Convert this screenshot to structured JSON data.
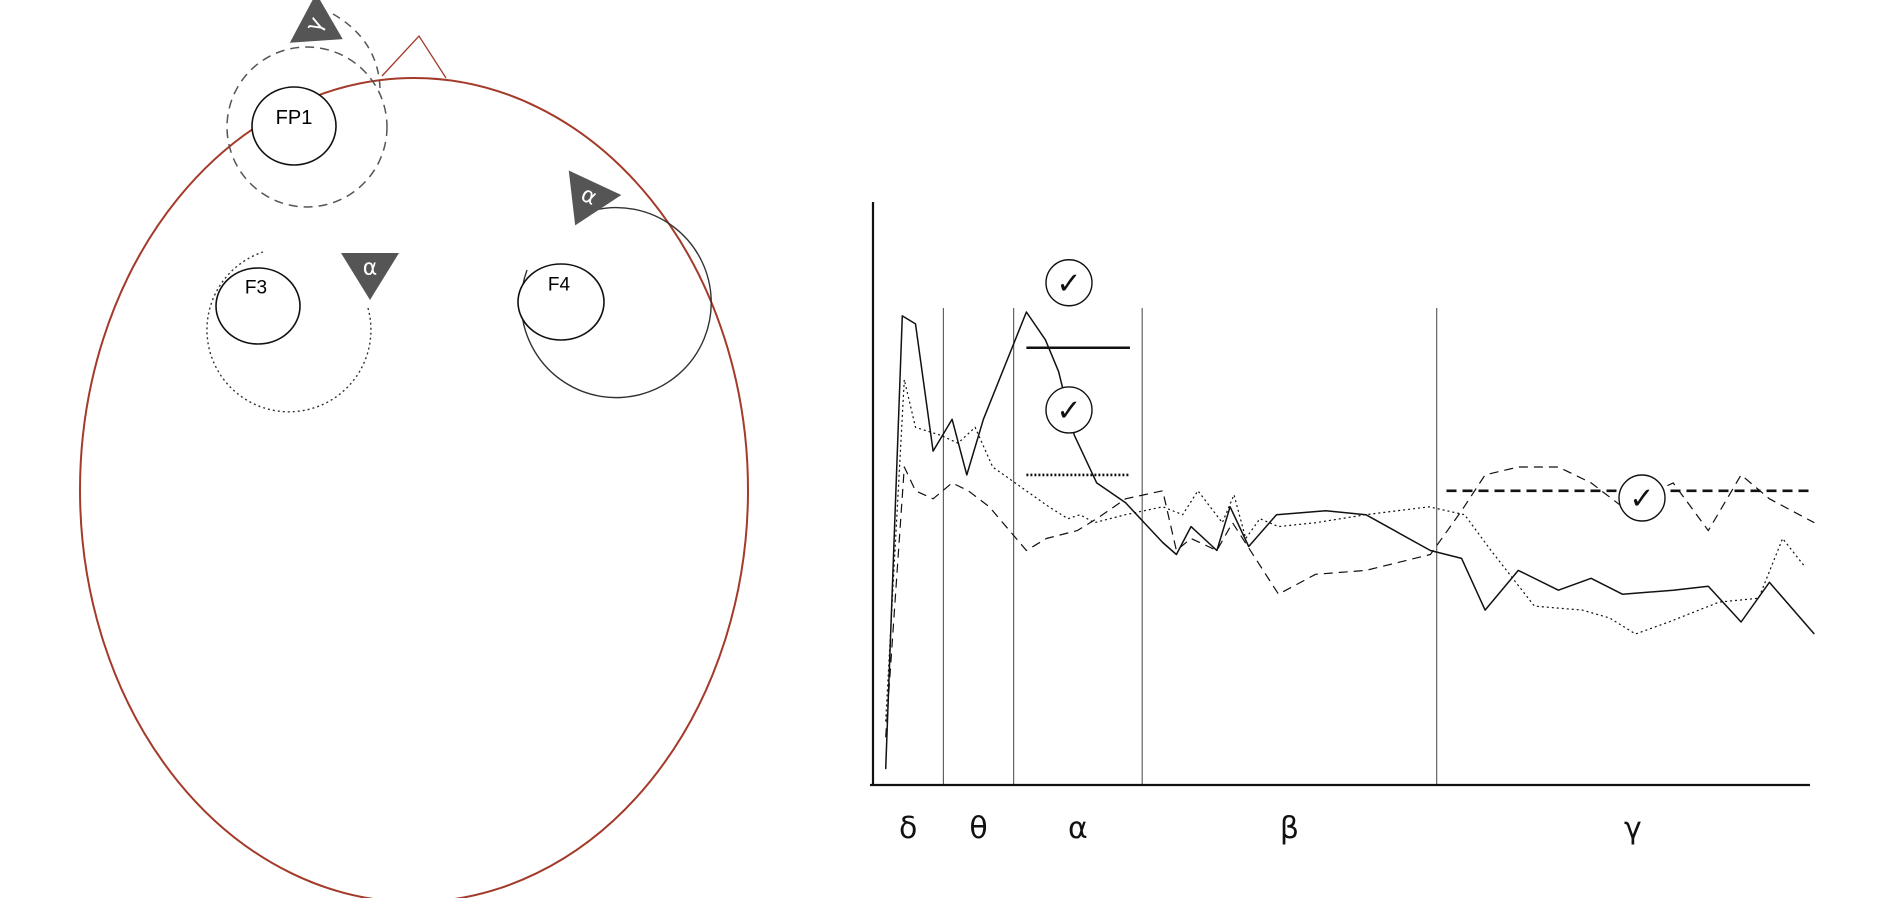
{
  "head": {
    "outline_color": "#a33a2a",
    "electrodes": [
      {
        "id": "fp1",
        "label": "FP1",
        "marker": "γ"
      },
      {
        "id": "f3",
        "label": "F3",
        "marker": "α"
      },
      {
        "id": "f4",
        "label": "F4",
        "marker": "α"
      }
    ]
  },
  "marker_color": "#555555",
  "check_glyph": "✓",
  "chart_data": {
    "type": "line",
    "title": "",
    "xlabel": "",
    "ylabel": "",
    "bands": [
      "δ",
      "θ",
      "α",
      "β",
      "γ"
    ],
    "band_edges": [
      0,
      1.44,
      2.88,
      5.51,
      11.54,
      19.57
    ],
    "xlim": [
      0,
      19.57
    ],
    "ylim": [
      0,
      10
    ],
    "series": [
      {
        "style": "solid",
        "x": [
          0.26,
          0.6,
          0.87,
          1.23,
          1.62,
          1.92,
          2.26,
          3.14,
          3.53,
          3.8,
          4.12,
          4.58,
          5.17,
          5.93,
          6.21,
          6.51,
          7.04,
          7.31,
          7.69,
          8.26,
          9.27,
          10.09,
          11.41,
          12.05,
          12.53,
          13.21,
          14.03,
          14.7,
          15.34,
          16.38,
          17.1,
          17.77,
          18.35,
          19.27
        ],
        "y": [
          0.2,
          5.9,
          5.8,
          4.2,
          4.6,
          3.9,
          4.6,
          5.95,
          5.6,
          5.2,
          4.4,
          3.8,
          3.55,
          3.05,
          2.9,
          3.25,
          2.95,
          3.5,
          3.0,
          3.4,
          3.45,
          3.4,
          2.95,
          2.85,
          2.2,
          2.7,
          2.45,
          2.6,
          2.4,
          2.45,
          2.5,
          2.05,
          2.55,
          1.9
        ]
      },
      {
        "style": "dotted",
        "x": [
          0.26,
          0.64,
          0.87,
          1.38,
          1.74,
          2.09,
          2.45,
          3.6,
          3.99,
          4.24,
          4.53,
          5.17,
          5.93,
          6.34,
          6.65,
          7.15,
          7.39,
          7.63,
          7.92,
          8.3,
          9.06,
          10.09,
          11.38,
          12.11,
          12.65,
          13.54,
          14.52,
          15.08,
          15.61,
          16.29,
          17.32,
          18.13,
          18.62,
          19.07
        ],
        "y": [
          0.8,
          5.1,
          4.5,
          4.4,
          4.3,
          4.5,
          4.0,
          3.5,
          3.35,
          3.4,
          3.3,
          3.4,
          3.5,
          3.4,
          3.7,
          3.3,
          3.65,
          3.1,
          3.35,
          3.25,
          3.3,
          3.4,
          3.5,
          3.4,
          2.95,
          2.25,
          2.2,
          2.1,
          1.9,
          2.05,
          2.3,
          2.35,
          3.1,
          2.75
        ]
      },
      {
        "style": "dashed",
        "x": [
          0.26,
          0.64,
          0.87,
          1.23,
          1.62,
          1.95,
          2.38,
          3.14,
          3.55,
          4.18,
          4.58,
          5.17,
          5.93,
          6.21,
          6.51,
          7.04,
          7.36,
          8.3,
          9.06,
          10.09,
          11.41,
          12.05,
          12.53,
          13.21,
          14.03,
          14.7,
          15.34,
          16.38,
          17.1,
          17.77,
          18.35,
          19.27
        ],
        "y": [
          0.6,
          4.0,
          3.7,
          3.6,
          3.8,
          3.7,
          3.5,
          2.95,
          3.1,
          3.2,
          3.35,
          3.6,
          3.7,
          2.95,
          3.1,
          2.95,
          3.3,
          2.4,
          2.65,
          2.7,
          2.9,
          3.45,
          3.9,
          4.0,
          4.0,
          3.8,
          3.5,
          3.8,
          3.2,
          3.9,
          3.6,
          3.3
        ]
      }
    ],
    "thresholds": [
      {
        "style": "solid",
        "x": [
          3.14,
          5.26
        ],
        "y": 5.5,
        "checked": true
      },
      {
        "style": "dotted",
        "x": [
          3.14,
          5.26
        ],
        "y": 3.9,
        "checked": true
      },
      {
        "style": "dashed",
        "x": [
          11.74,
          19.27
        ],
        "y": 3.7,
        "checked": true
      }
    ]
  }
}
